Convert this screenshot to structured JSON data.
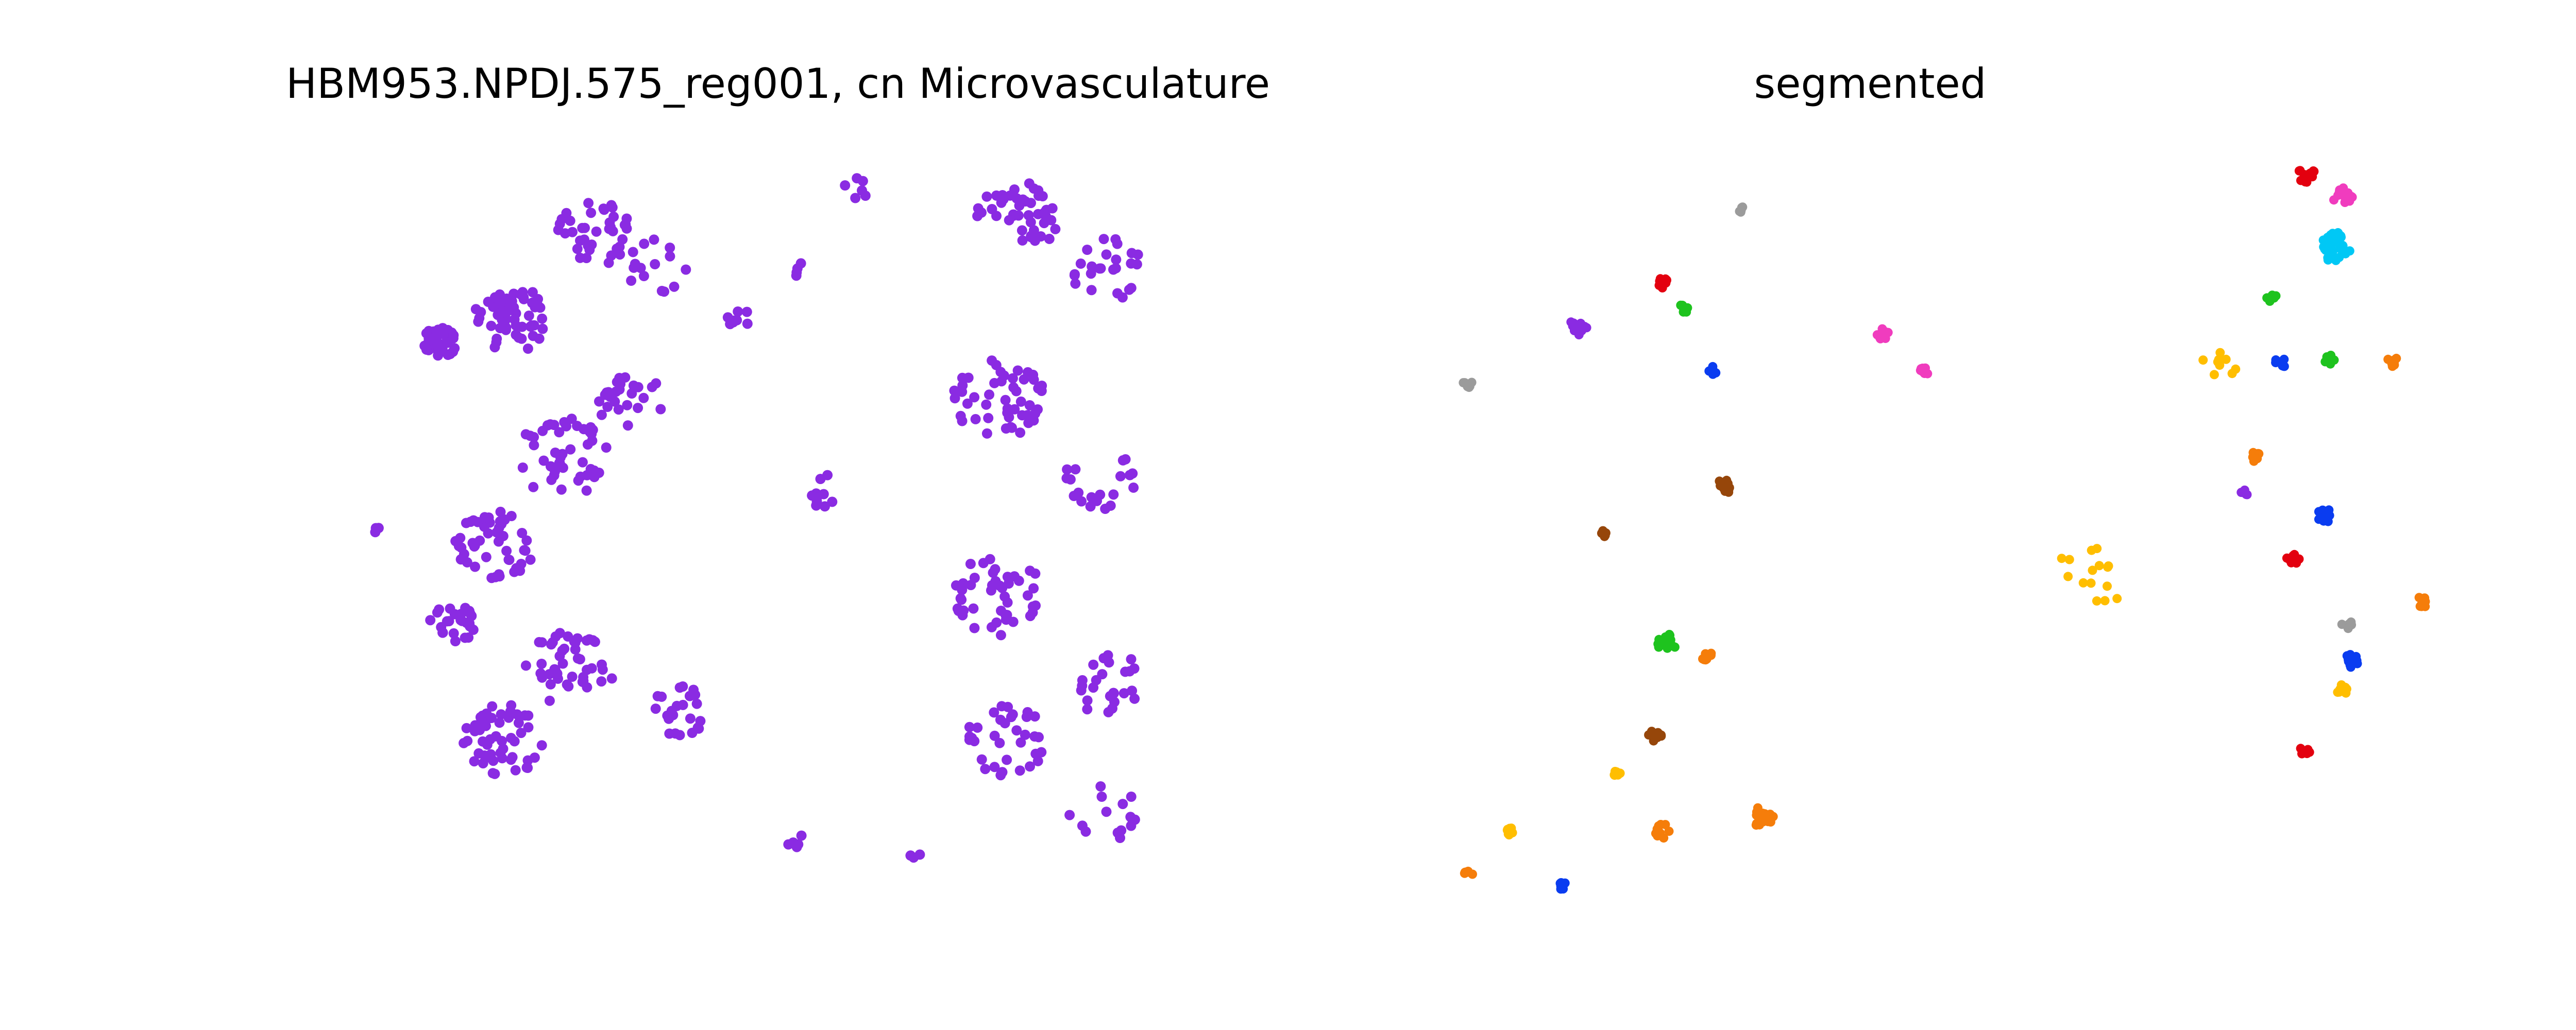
{
  "colors": {
    "purple": "#8a2be2",
    "red": "#e3000f",
    "pink": "#f03cbe",
    "cyan": "#00c8f5",
    "green": "#1ec31e",
    "blue": "#0a3cf0",
    "orange": "#f57d0a",
    "yellow": "#ffbe00",
    "gray": "#9b9b9b",
    "brown": "#96460a"
  },
  "chart_data": [
    {
      "type": "scatter",
      "title": "HBM953.NPDJ.575_reg001, cn Microvasculature",
      "xlabel": "",
      "ylabel": "",
      "axes_visible": false,
      "grid": false,
      "xlim": [
        0,
        1000
      ],
      "ylim": [
        0,
        1000
      ],
      "color": "#8a2be2",
      "groups": [
        {
          "cx": 20,
          "cy": 510,
          "n": 3,
          "r": 4
        },
        {
          "cx": 95,
          "cy": 250,
          "n": 35,
          "r": 22
        },
        {
          "cx": 110,
          "cy": 640,
          "n": 25,
          "r": 28
        },
        {
          "cx": 180,
          "cy": 220,
          "n": 60,
          "r": 45
        },
        {
          "cx": 160,
          "cy": 530,
          "n": 50,
          "r": 50
        },
        {
          "cx": 170,
          "cy": 800,
          "n": 55,
          "r": 50
        },
        {
          "cx": 280,
          "cy": 100,
          "n": 40,
          "r": 45
        },
        {
          "cx": 240,
          "cy": 410,
          "n": 45,
          "r": 55
        },
        {
          "cx": 250,
          "cy": 700,
          "n": 45,
          "r": 55
        },
        {
          "cx": 320,
          "cy": 330,
          "n": 25,
          "r": 40
        },
        {
          "cx": 380,
          "cy": 760,
          "n": 25,
          "r": 35
        },
        {
          "cx": 350,
          "cy": 150,
          "n": 15,
          "r": 40
        },
        {
          "cx": 450,
          "cy": 220,
          "n": 8,
          "r": 15
        },
        {
          "cx": 520,
          "cy": 150,
          "n": 4,
          "r": 10
        },
        {
          "cx": 590,
          "cy": 40,
          "n": 6,
          "r": 15
        },
        {
          "cx": 560,
          "cy": 460,
          "n": 10,
          "r": 28
        },
        {
          "cx": 520,
          "cy": 940,
          "n": 5,
          "r": 15
        },
        {
          "cx": 660,
          "cy": 960,
          "n": 3,
          "r": 10
        },
        {
          "cx": 780,
          "cy": 80,
          "n": 45,
          "r": 50
        },
        {
          "cx": 760,
          "cy": 330,
          "n": 50,
          "r": 55
        },
        {
          "cx": 760,
          "cy": 600,
          "n": 45,
          "r": 55
        },
        {
          "cx": 770,
          "cy": 800,
          "n": 35,
          "r": 50
        },
        {
          "cx": 890,
          "cy": 150,
          "n": 25,
          "r": 45
        },
        {
          "cx": 880,
          "cy": 440,
          "n": 20,
          "r": 45
        },
        {
          "cx": 890,
          "cy": 720,
          "n": 25,
          "r": 45
        },
        {
          "cx": 880,
          "cy": 900,
          "n": 15,
          "r": 45
        }
      ]
    },
    {
      "type": "scatter",
      "title": "segmented",
      "xlabel": "",
      "ylabel": "",
      "axes_visible": false,
      "grid": false,
      "xlim": [
        0,
        1000
      ],
      "ylim": [
        0,
        1000
      ],
      "groups": [
        {
          "cx": 340,
          "cy": 70,
          "n": 6,
          "r": 5,
          "color": "gray"
        },
        {
          "cx": 12,
          "cy": 310,
          "n": 8,
          "r": 8,
          "color": "gray"
        },
        {
          "cx": 145,
          "cy": 230,
          "n": 18,
          "r": 12,
          "color": "purple"
        },
        {
          "cx": 245,
          "cy": 170,
          "n": 10,
          "r": 8,
          "color": "red"
        },
        {
          "cx": 270,
          "cy": 205,
          "n": 7,
          "r": 6,
          "color": "green"
        },
        {
          "cx": 305,
          "cy": 290,
          "n": 7,
          "r": 6,
          "color": "blue"
        },
        {
          "cx": 320,
          "cy": 450,
          "n": 12,
          "r": 10,
          "color": "brown"
        },
        {
          "cx": 175,
          "cy": 515,
          "n": 7,
          "r": 5,
          "color": "brown"
        },
        {
          "cx": 510,
          "cy": 240,
          "n": 8,
          "r": 8,
          "color": "pink"
        },
        {
          "cx": 560,
          "cy": 290,
          "n": 8,
          "r": 6,
          "color": "pink"
        },
        {
          "cx": 250,
          "cy": 665,
          "n": 20,
          "r": 12,
          "color": "green"
        },
        {
          "cx": 300,
          "cy": 685,
          "n": 8,
          "r": 8,
          "color": "orange"
        },
        {
          "cx": 235,
          "cy": 795,
          "n": 10,
          "r": 9,
          "color": "brown"
        },
        {
          "cx": 190,
          "cy": 845,
          "n": 6,
          "r": 5,
          "color": "yellow"
        },
        {
          "cx": 365,
          "cy": 905,
          "n": 18,
          "r": 14,
          "color": "orange"
        },
        {
          "cx": 245,
          "cy": 925,
          "n": 12,
          "r": 10,
          "color": "orange"
        },
        {
          "cx": 60,
          "cy": 925,
          "n": 7,
          "r": 6,
          "color": "yellow"
        },
        {
          "cx": 12,
          "cy": 985,
          "n": 8,
          "r": 6,
          "color": "orange"
        },
        {
          "cx": 125,
          "cy": 1000,
          "n": 7,
          "r": 5,
          "color": "blue"
        },
        {
          "cx": 760,
          "cy": 560,
          "n": 15,
          "r": 55,
          "color": "yellow"
        },
        {
          "cx": 1015,
          "cy": 20,
          "n": 14,
          "r": 12,
          "color": "red"
        },
        {
          "cx": 1060,
          "cy": 50,
          "n": 16,
          "r": 12,
          "color": "pink"
        },
        {
          "cx": 1050,
          "cy": 120,
          "n": 35,
          "r": 20,
          "color": "cyan"
        },
        {
          "cx": 975,
          "cy": 190,
          "n": 8,
          "r": 6,
          "color": "green"
        },
        {
          "cx": 910,
          "cy": 290,
          "n": 9,
          "r": 25,
          "color": "yellow"
        },
        {
          "cx": 985,
          "cy": 280,
          "n": 8,
          "r": 7,
          "color": "blue"
        },
        {
          "cx": 1045,
          "cy": 275,
          "n": 8,
          "r": 7,
          "color": "green"
        },
        {
          "cx": 1120,
          "cy": 280,
          "n": 8,
          "r": 8,
          "color": "orange"
        },
        {
          "cx": 955,
          "cy": 410,
          "n": 7,
          "r": 7,
          "color": "orange"
        },
        {
          "cx": 940,
          "cy": 460,
          "n": 6,
          "r": 6,
          "color": "purple"
        },
        {
          "cx": 1040,
          "cy": 490,
          "n": 14,
          "r": 11,
          "color": "blue"
        },
        {
          "cx": 1000,
          "cy": 550,
          "n": 10,
          "r": 8,
          "color": "red"
        },
        {
          "cx": 1155,
          "cy": 610,
          "n": 10,
          "r": 8,
          "color": "orange"
        },
        {
          "cx": 1065,
          "cy": 640,
          "n": 6,
          "r": 6,
          "color": "gray"
        },
        {
          "cx": 1070,
          "cy": 690,
          "n": 12,
          "r": 9,
          "color": "blue"
        },
        {
          "cx": 1060,
          "cy": 730,
          "n": 8,
          "r": 7,
          "color": "yellow"
        },
        {
          "cx": 1015,
          "cy": 815,
          "n": 8,
          "r": 7,
          "color": "red"
        }
      ]
    }
  ]
}
